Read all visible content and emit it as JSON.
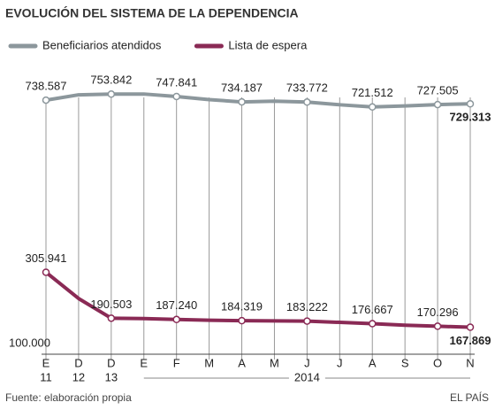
{
  "chart_data": {
    "type": "line",
    "title": "EVOLUCIÓN DEL SISTEMA DE LA DEPENDENCIA",
    "categories": [
      "E",
      "D",
      "D",
      "E",
      "F",
      "M",
      "A",
      "M",
      "J",
      "J",
      "A",
      "S",
      "O",
      "N"
    ],
    "category_sublabels": [
      "11",
      "12",
      "13",
      null,
      null,
      null,
      null,
      null,
      null,
      null,
      null,
      null,
      null,
      null
    ],
    "year_label": "2014",
    "series": [
      {
        "name": "Beneficiarios atendidos",
        "color": "#8c979c",
        "values": [
          738587,
          752000,
          753842,
          754000,
          747841,
          740000,
          734187,
          736000,
          733772,
          727000,
          721512,
          724000,
          727505,
          729313
        ],
        "value_labels": [
          "738.587",
          null,
          "753.842",
          null,
          "747.841",
          null,
          "734.187",
          null,
          "733.772",
          null,
          "721.512",
          null,
          "727.505",
          "729.313"
        ]
      },
      {
        "name": "Lista de espera",
        "color": "#8a2a55",
        "values": [
          305941,
          240000,
          190503,
          189500,
          187240,
          185500,
          184319,
          183800,
          183222,
          180000,
          176667,
          173000,
          170296,
          167869
        ],
        "value_labels": [
          "305.941",
          null,
          "190.503",
          null,
          "187.240",
          null,
          "184.319",
          null,
          "183.222",
          null,
          "176.667",
          null,
          "170.296",
          "167.869"
        ]
      }
    ],
    "ylim": [
      100000,
      770000
    ],
    "yticks": [
      {
        "value": 100000,
        "label": "100.000"
      }
    ],
    "source": "Fuente: elaboración propia",
    "brand": "EL PAÍS"
  }
}
